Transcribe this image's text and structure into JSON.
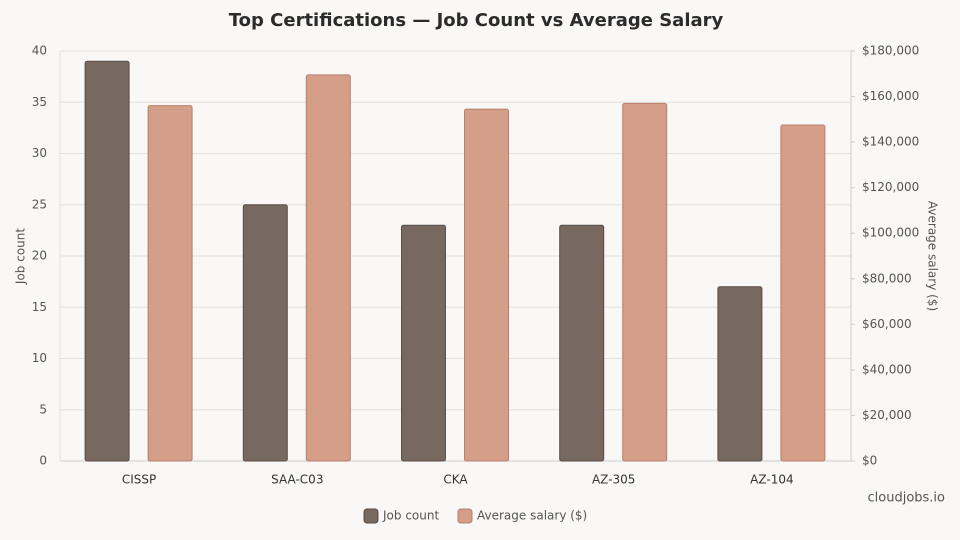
{
  "chart_data": {
    "type": "bar",
    "title": "Top Certifications — Job Count vs Average Salary",
    "categories": [
      "CISSP",
      "SAA-C03",
      "CKA",
      "AZ-305",
      "AZ-104"
    ],
    "series": [
      {
        "name": "Job count",
        "color": "#776860",
        "values": [
          39,
          25,
          23,
          23,
          17
        ]
      },
      {
        "name": "Average salary ($)",
        "color": "#d49e88",
        "axis": "y2",
        "values": [
          156000,
          169500,
          154500,
          157000,
          147500
        ]
      }
    ],
    "ylabel": "Job count",
    "y2label": "Average salary ($)",
    "ylim": [
      0,
      40
    ],
    "yticks": [
      0,
      5,
      10,
      15,
      20,
      25,
      30,
      35,
      40
    ],
    "y2lim": [
      0,
      180000
    ],
    "y2ticks": [
      {
        "value": 0,
        "label": "$0"
      },
      {
        "value": 20000,
        "label": "$20,000"
      },
      {
        "value": 40000,
        "label": "$40,000"
      },
      {
        "value": 60000,
        "label": "$60,000"
      },
      {
        "value": 80000,
        "label": "$80,000"
      },
      {
        "value": 100000,
        "label": "$100,000"
      },
      {
        "value": 120000,
        "label": "$120,000"
      },
      {
        "value": 140000,
        "label": "$140,000"
      },
      {
        "value": 160000,
        "label": "$160,000"
      },
      {
        "value": 180000,
        "label": "$180,000"
      }
    ],
    "grid": true,
    "legend": "bottom",
    "watermark": "cloudjobs.io"
  }
}
